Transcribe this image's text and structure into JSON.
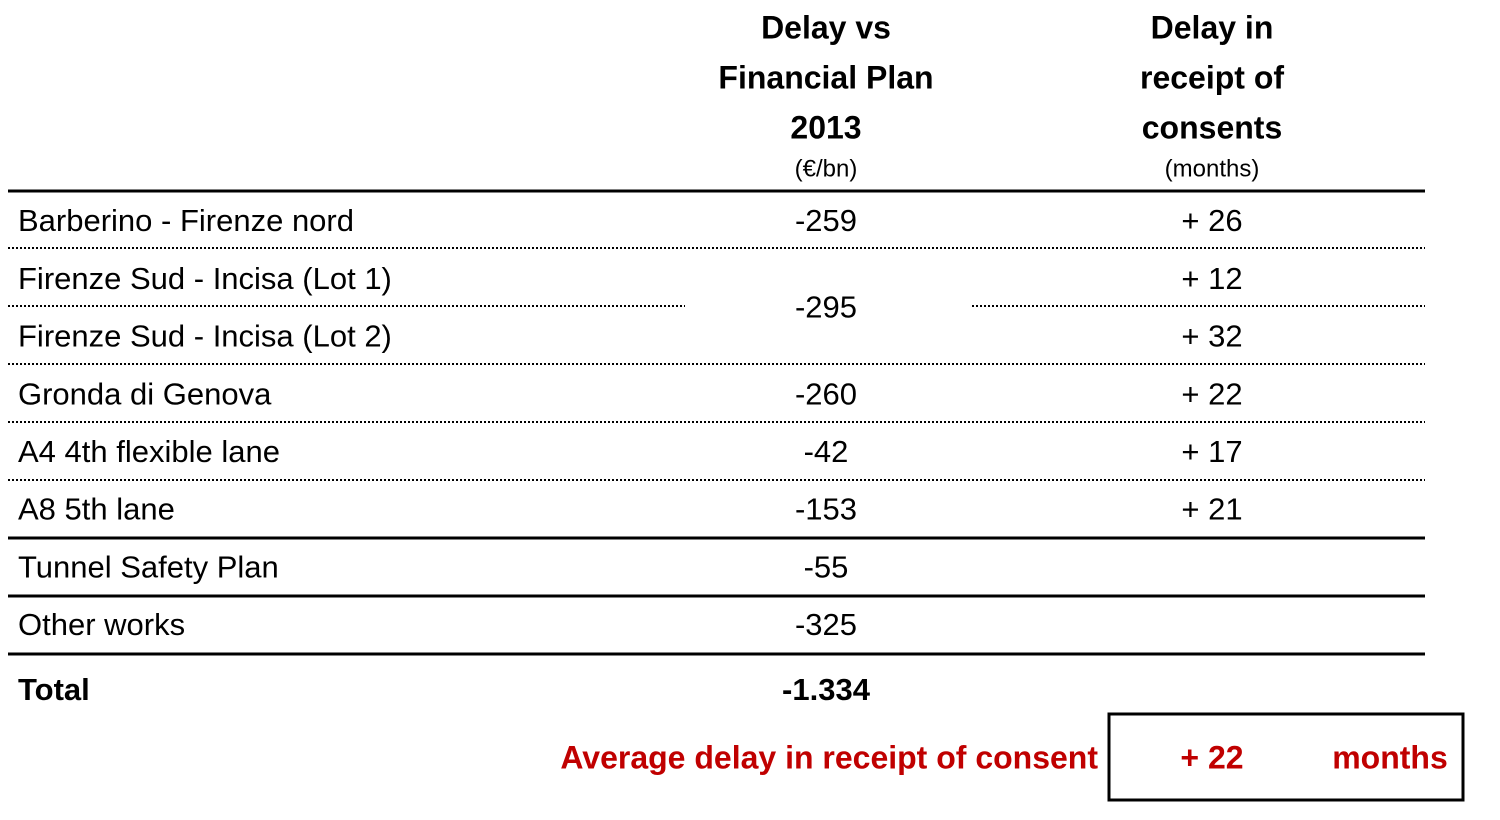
{
  "header": {
    "columns": [
      {
        "lines": [
          "Delay vs",
          "Financial Plan",
          "2013"
        ],
        "unit": "(€/bn)"
      },
      {
        "lines": [
          "Delay in",
          "receipt of",
          "consents"
        ],
        "unit": "(months)"
      }
    ]
  },
  "table": {
    "rows": [
      {
        "label": "Barberino - Firenze nord",
        "plan": "-259",
        "consents": "+ 26"
      },
      {
        "label": "Firenze Sud - Incisa (Lot 1)",
        "plan": "-295",
        "consents": "+ 12"
      },
      {
        "label": "Firenze Sud - Incisa (Lot 2)",
        "consents": "+ 32"
      },
      {
        "label": "Gronda di Genova",
        "plan": "-260",
        "consents": "+ 22"
      },
      {
        "label": "A4 4th flexible lane",
        "plan": "-42",
        "consents": "+ 17"
      },
      {
        "label": "A8 5th lane",
        "plan": "-153",
        "consents": "+ 21"
      },
      {
        "label": "Tunnel Safety Plan",
        "plan": "-55"
      },
      {
        "label": "Other works",
        "plan": "-325"
      }
    ],
    "total": {
      "label": "Total",
      "plan": "-1.334"
    }
  },
  "summary": {
    "label": "Average delay in receipt of consent",
    "value": "+ 22",
    "unit": "months"
  }
}
